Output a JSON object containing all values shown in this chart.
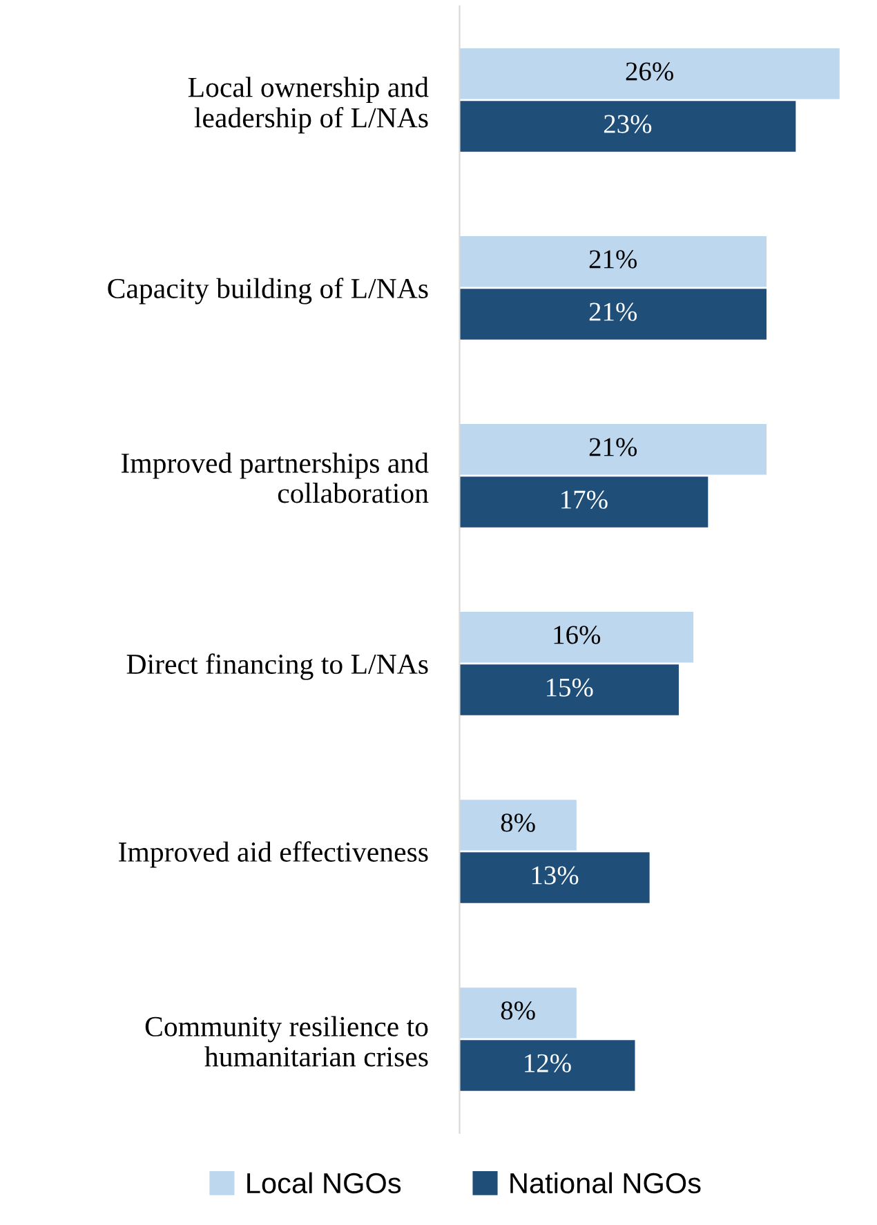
{
  "chart_data": {
    "type": "bar",
    "orientation": "horizontal",
    "categories": [
      "Local ownership and\nleadership of L/NAs",
      "Capacity building of L/NAs",
      "Improved partnerships and\ncollaboration",
      "Direct financing to L/NAs",
      "Improved aid effectiveness",
      "Community resilience to\nhumanitarian crises"
    ],
    "series": [
      {
        "name": "Local NGOs",
        "color": "#bdd7ee",
        "values": [
          26,
          21,
          21,
          16,
          8,
          8
        ],
        "value_labels": [
          "26%",
          "21%",
          "21%",
          "16%",
          "8%",
          "8%"
        ]
      },
      {
        "name": "National NGOs",
        "color": "#1f4e79",
        "values": [
          23,
          21,
          17,
          15,
          13,
          12
        ],
        "value_labels": [
          "23%",
          "21%",
          "17%",
          "15%",
          "13%",
          "12%"
        ]
      }
    ],
    "legend": "bottom",
    "grid": false
  }
}
